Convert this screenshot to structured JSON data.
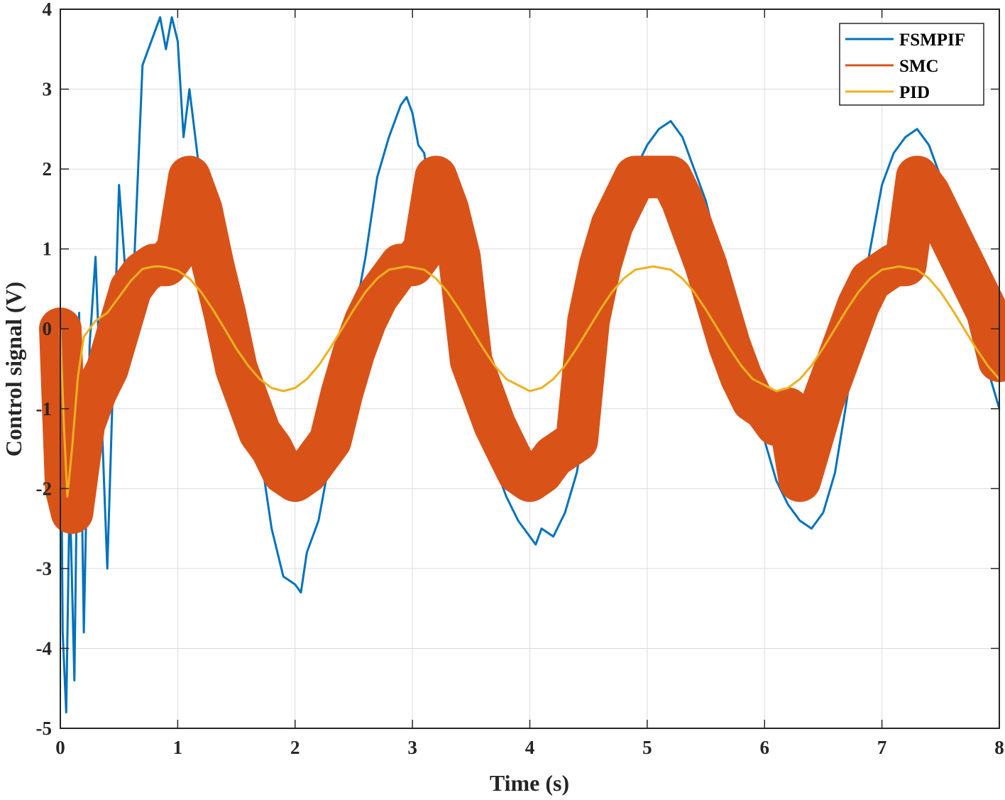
{
  "chart_data": {
    "type": "line",
    "xlabel": "Time (s)",
    "ylabel": "Control signal (V)",
    "xlim": [
      0,
      8
    ],
    "ylim": [
      -5,
      4
    ],
    "xticks": [
      "0",
      "1",
      "2",
      "3",
      "4",
      "5",
      "6",
      "7",
      "8"
    ],
    "yticks": [
      "-5",
      "-4",
      "-3",
      "-2",
      "-1",
      "0",
      "1",
      "2",
      "3",
      "4"
    ],
    "grid": true,
    "legend_position": "top-right",
    "series": [
      {
        "name": "FSMPIF",
        "color": "#0072BD",
        "x": [
          0,
          0.02,
          0.05,
          0.08,
          0.12,
          0.16,
          0.2,
          0.25,
          0.3,
          0.4,
          0.5,
          0.6,
          0.7,
          0.8,
          0.85,
          0.9,
          0.95,
          1.0,
          1.05,
          1.1,
          1.2,
          1.3,
          1.4,
          1.5,
          1.6,
          1.7,
          1.8,
          1.9,
          2.0,
          2.05,
          2.1,
          2.2,
          2.3,
          2.4,
          2.5,
          2.6,
          2.7,
          2.8,
          2.9,
          2.95,
          3.0,
          3.05,
          3.1,
          3.2,
          3.3,
          3.4,
          3.5,
          3.6,
          3.7,
          3.8,
          3.9,
          4.0,
          4.05,
          4.1,
          4.2,
          4.3,
          4.4,
          4.5,
          4.6,
          4.7,
          4.8,
          4.9,
          5.0,
          5.1,
          5.2,
          5.3,
          5.4,
          5.5,
          5.6,
          5.7,
          5.8,
          5.9,
          6.0,
          6.1,
          6.2,
          6.3,
          6.4,
          6.5,
          6.6,
          6.7,
          6.8,
          6.9,
          7.0,
          7.1,
          7.2,
          7.3,
          7.4,
          7.5,
          7.6,
          7.7,
          7.8,
          7.9,
          8.0
        ],
        "y": [
          0.0,
          -3.8,
          -4.8,
          -2.0,
          -4.4,
          0.2,
          -3.8,
          -0.2,
          0.9,
          -3.0,
          1.8,
          -0.2,
          3.3,
          3.7,
          3.9,
          3.5,
          3.9,
          3.6,
          2.4,
          3.0,
          1.8,
          1.3,
          0.4,
          -0.6,
          -1.0,
          -1.5,
          -2.5,
          -3.1,
          -3.2,
          -3.3,
          -2.8,
          -2.4,
          -1.6,
          -1.4,
          0.1,
          0.9,
          1.9,
          2.4,
          2.8,
          2.9,
          2.7,
          2.3,
          2.2,
          1.2,
          0.8,
          -0.3,
          -0.8,
          -1.4,
          -1.7,
          -2.1,
          -2.4,
          -2.6,
          -2.7,
          -2.5,
          -2.6,
          -2.3,
          -1.8,
          -0.9,
          0.3,
          1.0,
          1.6,
          2.0,
          2.3,
          2.5,
          2.6,
          2.4,
          2.0,
          1.6,
          1.0,
          0.4,
          -0.3,
          -0.9,
          -1.4,
          -1.9,
          -2.2,
          -2.4,
          -2.5,
          -2.3,
          -1.8,
          -0.9,
          0.2,
          1.0,
          1.8,
          2.2,
          2.4,
          2.5,
          2.3,
          1.9,
          1.4,
          0.8,
          0.2,
          -0.5,
          -1.0
        ]
      },
      {
        "name": "SMC",
        "color": "#D95319",
        "x": [
          0,
          0.05,
          0.1,
          0.2,
          0.3,
          0.4,
          0.5,
          0.6,
          0.7,
          0.8,
          0.9,
          1.0,
          1.1,
          1.2,
          1.3,
          1.4,
          1.5,
          1.6,
          1.7,
          1.8,
          1.9,
          2.0,
          2.1,
          2.2,
          2.3,
          2.4,
          2.5,
          2.6,
          2.7,
          2.8,
          2.9,
          3.0,
          3.1,
          3.2,
          3.3,
          3.4,
          3.5,
          3.6,
          3.7,
          3.8,
          3.9,
          4.0,
          4.1,
          4.2,
          4.3,
          4.4,
          4.5,
          4.6,
          4.7,
          4.8,
          4.9,
          5.0,
          5.1,
          5.2,
          5.3,
          5.4,
          5.5,
          5.6,
          5.7,
          5.8,
          5.9,
          6.0,
          6.1,
          6.2,
          6.3,
          6.4,
          6.5,
          6.6,
          6.7,
          6.8,
          6.9,
          7.0,
          7.1,
          7.2,
          7.3,
          7.4,
          7.5,
          7.6,
          7.7,
          7.8,
          7.9,
          8.0
        ],
        "y": [
          0.0,
          -2.0,
          -2.3,
          -1.2,
          -0.8,
          -0.5,
          0.0,
          0.5,
          0.7,
          0.8,
          0.8,
          1.0,
          1.9,
          1.5,
          0.8,
          0.2,
          -0.5,
          -0.9,
          -1.3,
          -1.5,
          -1.8,
          -1.9,
          -1.8,
          -1.6,
          -1.4,
          -0.8,
          -0.3,
          0.1,
          0.4,
          0.6,
          0.8,
          0.8,
          1.0,
          1.9,
          1.5,
          0.9,
          -0.4,
          -0.8,
          -1.2,
          -1.5,
          -1.8,
          -1.9,
          -1.8,
          -1.6,
          -1.5,
          -1.4,
          0.1,
          0.8,
          1.3,
          1.6,
          1.9,
          1.9,
          1.9,
          1.9,
          1.6,
          1.2,
          0.8,
          0.3,
          -0.2,
          -0.6,
          -0.9,
          -1.0,
          -1.2,
          -1.0,
          -1.9,
          -1.4,
          -0.9,
          -0.5,
          -0.1,
          0.3,
          0.6,
          0.7,
          0.8,
          0.8,
          1.9,
          1.7,
          1.4,
          1.1,
          0.8,
          0.5,
          0.2,
          -0.4
        ]
      },
      {
        "name": "PID",
        "color": "#EDB120",
        "x": [
          0,
          0.03,
          0.06,
          0.1,
          0.15,
          0.2,
          0.3,
          0.4,
          0.5,
          0.6,
          0.7,
          0.8,
          0.85,
          0.9,
          1.0,
          1.1,
          1.2,
          1.3,
          1.4,
          1.5,
          1.6,
          1.7,
          1.8,
          1.9,
          2.0,
          2.1,
          2.2,
          2.3,
          2.4,
          2.5,
          2.6,
          2.7,
          2.8,
          2.95,
          3.1,
          3.2,
          3.3,
          3.4,
          3.5,
          3.6,
          3.7,
          3.8,
          4.0,
          4.1,
          4.2,
          4.3,
          4.4,
          4.5,
          4.6,
          4.7,
          4.8,
          4.9,
          5.05,
          5.2,
          5.3,
          5.4,
          5.5,
          5.6,
          5.7,
          5.8,
          5.9,
          6.1,
          6.2,
          6.3,
          6.4,
          6.5,
          6.6,
          6.7,
          6.8,
          6.9,
          7.0,
          7.15,
          7.3,
          7.4,
          7.5,
          7.6,
          7.7,
          7.8,
          7.9,
          8.0
        ],
        "y": [
          0.0,
          -1.2,
          -2.1,
          -1.5,
          -0.6,
          -0.1,
          0.1,
          0.2,
          0.4,
          0.6,
          0.75,
          0.78,
          0.78,
          0.77,
          0.73,
          0.63,
          0.46,
          0.24,
          0.0,
          -0.25,
          -0.46,
          -0.63,
          -0.74,
          -0.78,
          -0.74,
          -0.63,
          -0.46,
          -0.24,
          0.0,
          0.24,
          0.46,
          0.63,
          0.74,
          0.78,
          0.74,
          0.63,
          0.46,
          0.24,
          0.0,
          -0.24,
          -0.46,
          -0.63,
          -0.78,
          -0.74,
          -0.63,
          -0.46,
          -0.24,
          0.0,
          0.24,
          0.46,
          0.63,
          0.74,
          0.78,
          0.74,
          0.63,
          0.46,
          0.24,
          0.0,
          -0.24,
          -0.46,
          -0.63,
          -0.78,
          -0.74,
          -0.63,
          -0.46,
          -0.24,
          0.0,
          0.24,
          0.46,
          0.63,
          0.74,
          0.78,
          0.74,
          0.63,
          0.46,
          0.24,
          0.0,
          -0.24,
          -0.46,
          -0.63
        ]
      }
    ]
  }
}
